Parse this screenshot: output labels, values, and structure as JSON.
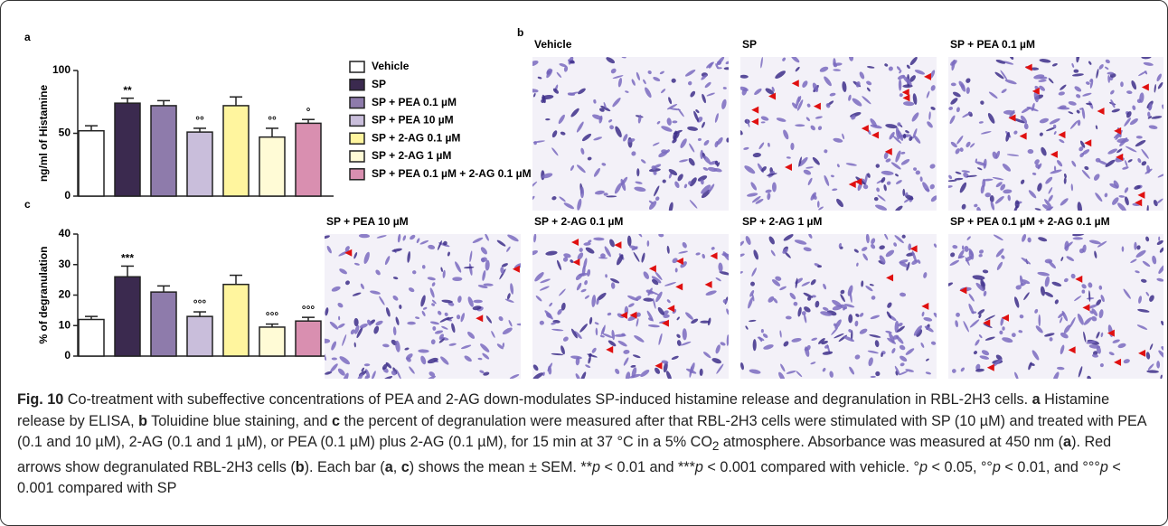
{
  "chart_data": [
    {
      "type": "bar",
      "panel": "a",
      "ylabel": "ng/ml of Histamine",
      "categories": [
        "Vehicle",
        "SP",
        "SP + PEA 0.1 µM",
        "SP + PEA 10 µM",
        "SP + 2-AG 0.1 µM",
        "SP + 2-AG 1 µM",
        "SP + PEA 0.1 µM + 2-AG 0.1 µM"
      ],
      "colors": [
        "#ffffff",
        "#3b2a4f",
        "#8e7bab",
        "#c9bedb",
        "#fff59e",
        "#fffbd6",
        "#d98fb0"
      ],
      "values": [
        52,
        74,
        72,
        51,
        72,
        47,
        58
      ],
      "errors": [
        4,
        4,
        4,
        3,
        7,
        7,
        3
      ],
      "annotations": [
        null,
        "**",
        null,
        "°°",
        null,
        "°°",
        "°"
      ],
      "ylim": [
        0,
        100
      ],
      "yticks": [
        0,
        50,
        100
      ]
    },
    {
      "type": "bar",
      "panel": "c",
      "ylabel": "% of degranulation",
      "colors": [
        "#ffffff",
        "#3b2a4f",
        "#8e7bab",
        "#c9bedb",
        "#fff59e",
        "#fffbd6",
        "#d98fb0"
      ],
      "values": [
        12,
        26,
        21,
        13,
        23.5,
        9.5,
        11.5
      ],
      "errors": [
        1,
        3.5,
        2,
        1.5,
        3,
        1,
        1.2
      ],
      "annotations": [
        null,
        "***",
        null,
        "°°°",
        null,
        "°°°",
        "°°°"
      ],
      "ylim": [
        0,
        40
      ],
      "yticks": [
        0,
        10,
        20,
        30,
        40
      ]
    }
  ],
  "panel_b": {
    "letter": "b",
    "images": [
      "Vehicle",
      "SP",
      "SP + PEA 0.1 µM",
      "SP + PEA 10 µM",
      "SP + 2-AG 0.1 µM",
      "SP + 2-AG 1 µM",
      "SP + PEA 0.1 µM + 2-AG 0.1 µM"
    ]
  },
  "caption": [
    "Fig. 10",
    " Co-treatment with subeffective concentrations of PEA and 2-AG down-modulates SP-induced histamine release and degranulation in RBL-2H3 cells. ",
    "a",
    " Histamine release by ELISA, ",
    "b",
    " Toluidine blue staining, and ",
    "c",
    " the percent of degranulation were measured after that RBL-2H3 cells were stimulated with SP (10 µM) and treated with PEA (0.1 and 10 µM), 2-AG (0.1 and 1 µM), or PEA (0.1 µM) plus 2-AG (0.1 µM), for 15 min at 37 °C in a 5% CO",
    "2",
    " atmosphere. Absorbance was measured at 450 nm (",
    "a",
    "). Red arrows show degranulated RBL-2H3 cells (",
    "b",
    "). Each bar (",
    "a",
    ", ",
    "c",
    ") shows the mean ± SEM. **",
    "p",
    " < 0.01 and ***",
    "p",
    " < 0.001 compared with vehicle. °",
    "p",
    " < 0.05, °°",
    "p",
    " < 0.01, and °°°",
    "p",
    " < 0.001 compared with SP"
  ]
}
